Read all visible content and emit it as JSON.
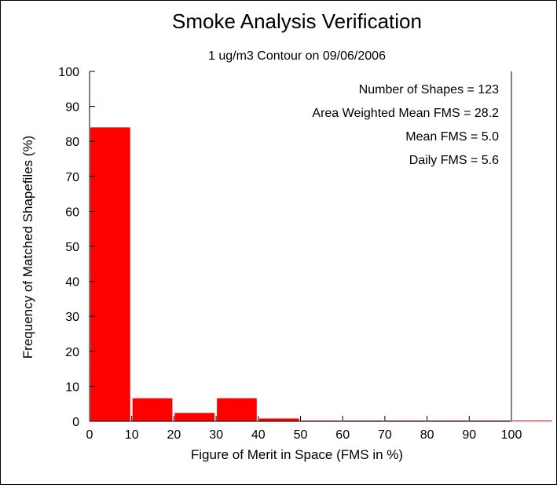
{
  "chart_data": {
    "type": "bar",
    "title": "Smoke Analysis Verification",
    "subtitle": "1 ug/m3 Contour on 09/06/2006",
    "xlabel": "Figure of Merit in Space (FMS in %)",
    "ylabel": "Frequency of Matched Shapefiles (%)",
    "xlim": [
      0,
      110
    ],
    "ylim": [
      0,
      100
    ],
    "x_ticks": [
      "0",
      "10",
      "20",
      "30",
      "40",
      "50",
      "60",
      "70",
      "80",
      "90",
      "100"
    ],
    "y_ticks": [
      "0",
      "10",
      "20",
      "30",
      "40",
      "50",
      "60",
      "70",
      "80",
      "90",
      "100"
    ],
    "bins": [
      {
        "start": 0,
        "end": 10,
        "value": 84
      },
      {
        "start": 10,
        "end": 20,
        "value": 6.6
      },
      {
        "start": 20,
        "end": 30,
        "value": 2.4
      },
      {
        "start": 30,
        "end": 40,
        "value": 6.6
      },
      {
        "start": 40,
        "end": 50,
        "value": 0.8
      },
      {
        "start": 50,
        "end": 60,
        "value": 0
      },
      {
        "start": 60,
        "end": 70,
        "value": 0
      },
      {
        "start": 70,
        "end": 80,
        "value": 0
      },
      {
        "start": 80,
        "end": 90,
        "value": 0
      },
      {
        "start": 90,
        "end": 100,
        "value": 0
      },
      {
        "start": 100,
        "end": 110,
        "value": 0
      }
    ],
    "bar_color": "#ff0000",
    "annotations": [
      "Number of Shapes = 123",
      "Area Weighted Mean FMS = 28.2",
      "Mean FMS = 5.0",
      "Daily FMS = 5.6"
    ],
    "grid": false
  }
}
